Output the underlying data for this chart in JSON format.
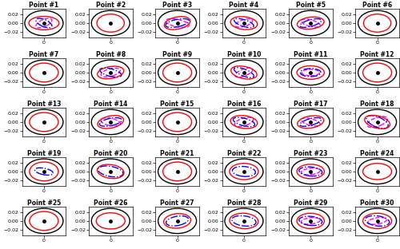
{
  "n_cols": 6,
  "n_rows": 5,
  "xlim": [
    -0.032,
    0.032
  ],
  "ylim": [
    -0.032,
    0.032
  ],
  "tick_yticks": [
    -0.02,
    0,
    0.02
  ],
  "tick_xticks": [
    0
  ],
  "schemes": {
    "s1": {
      "color": "black",
      "ls": "-",
      "lw": 1.0
    },
    "s2": {
      "color": "red",
      "ls": "-",
      "lw": 1.0
    },
    "s3": {
      "color": "blue",
      "ls": "-.",
      "lw": 1.0
    },
    "s4": {
      "color": "magenta",
      "ls": "--",
      "lw": 1.0
    }
  },
  "points": [
    {
      "id": 1,
      "s1": [
        0.056,
        0.056,
        0
      ],
      "s2": [
        0.044,
        0.03,
        0
      ],
      "s3": [
        0.028,
        0.014,
        -40
      ],
      "s4": [
        0.028,
        0.014,
        40
      ]
    },
    {
      "id": 2,
      "s1": [
        0.056,
        0.056,
        0
      ],
      "s2": [
        0.04,
        0.04,
        0
      ],
      "s3": null,
      "s4": null
    },
    {
      "id": 3,
      "s1": [
        0.056,
        0.056,
        0
      ],
      "s2": [
        0.04,
        0.026,
        25
      ],
      "s3": [
        0.036,
        0.016,
        20
      ],
      "s4": [
        0.036,
        0.016,
        -20
      ]
    },
    {
      "id": 4,
      "s1": [
        0.056,
        0.056,
        0
      ],
      "s2": [
        0.04,
        0.028,
        -15
      ],
      "s3": [
        0.032,
        0.014,
        -30
      ],
      "s4": [
        0.028,
        0.014,
        30
      ]
    },
    {
      "id": 5,
      "s1": [
        0.056,
        0.056,
        0
      ],
      "s2": [
        0.04,
        0.026,
        15
      ],
      "s3": [
        0.034,
        0.014,
        25
      ],
      "s4": [
        0.03,
        0.014,
        -25
      ]
    },
    {
      "id": 6,
      "s1": [
        0.056,
        0.056,
        0
      ],
      "s2": [
        0.04,
        0.04,
        0
      ],
      "s3": null,
      "s4": null
    },
    {
      "id": 7,
      "s1": [
        0.056,
        0.056,
        0
      ],
      "s2": [
        0.042,
        0.042,
        0
      ],
      "s3": null,
      "s4": null
    },
    {
      "id": 8,
      "s1": [
        0.056,
        0.056,
        0
      ],
      "s2": [
        0.04,
        0.026,
        20
      ],
      "s3": [
        0.034,
        0.016,
        -25
      ],
      "s4": [
        0.03,
        0.016,
        25
      ]
    },
    {
      "id": 9,
      "s1": [
        0.056,
        0.056,
        0
      ],
      "s2": [
        0.042,
        0.042,
        0
      ],
      "s3": null,
      "s4": null
    },
    {
      "id": 10,
      "s1": [
        0.056,
        0.056,
        0
      ],
      "s2": [
        0.04,
        0.026,
        -25
      ],
      "s3": [
        0.034,
        0.014,
        -35
      ],
      "s4": [
        0.03,
        0.014,
        35
      ]
    },
    {
      "id": 11,
      "s1": [
        0.056,
        0.056,
        0
      ],
      "s2": [
        0.04,
        0.03,
        0
      ],
      "s3": [
        0.03,
        0.018,
        0
      ],
      "s4": [
        0.026,
        0.014,
        0
      ]
    },
    {
      "id": 12,
      "s1": [
        0.056,
        0.056,
        0
      ],
      "s2": [
        0.042,
        0.042,
        0
      ],
      "s3": null,
      "s4": null
    },
    {
      "id": 13,
      "s1": [
        0.056,
        0.056,
        0
      ],
      "s2": [
        0.042,
        0.042,
        0
      ],
      "s3": null,
      "s4": null
    },
    {
      "id": 14,
      "s1": [
        0.056,
        0.056,
        0
      ],
      "s2": [
        0.04,
        0.026,
        25
      ],
      "s3": [
        0.034,
        0.016,
        20
      ],
      "s4": [
        0.03,
        0.016,
        -20
      ]
    },
    {
      "id": 15,
      "s1": [
        0.056,
        0.056,
        0
      ],
      "s2": [
        0.042,
        0.042,
        0
      ],
      "s3": null,
      "s4": null
    },
    {
      "id": 16,
      "s1": [
        0.056,
        0.056,
        0
      ],
      "s2": [
        0.04,
        0.028,
        -15
      ],
      "s3": [
        0.034,
        0.016,
        -25
      ],
      "s4": [
        0.03,
        0.016,
        30
      ]
    },
    {
      "id": 17,
      "s1": [
        0.056,
        0.056,
        0
      ],
      "s2": [
        0.04,
        0.026,
        20
      ],
      "s3": [
        0.034,
        0.014,
        25
      ],
      "s4": [
        0.03,
        0.014,
        -25
      ]
    },
    {
      "id": 18,
      "s1": [
        0.056,
        0.056,
        0
      ],
      "s2": [
        0.04,
        0.026,
        -30
      ],
      "s3": [
        0.038,
        0.02,
        -40
      ],
      "s4": [
        0.034,
        0.018,
        35
      ]
    },
    {
      "id": 19,
      "s1": [
        0.056,
        0.056,
        0
      ],
      "s2": [
        0.042,
        0.042,
        0
      ],
      "s3": [
        0.028,
        0.014,
        -20
      ],
      "s4": null
    },
    {
      "id": 20,
      "s1": [
        0.056,
        0.056,
        0
      ],
      "s2": [
        0.04,
        0.03,
        -20
      ],
      "s3": [
        0.038,
        0.022,
        -20
      ],
      "s4": null
    },
    {
      "id": 21,
      "s1": [
        0.056,
        0.056,
        0
      ],
      "s2": [
        0.042,
        0.042,
        0
      ],
      "s3": null,
      "s4": null
    },
    {
      "id": 22,
      "s1": [
        0.056,
        0.056,
        0
      ],
      "s2": [
        0.042,
        0.036,
        0
      ],
      "s3": [
        0.034,
        0.022,
        -10
      ],
      "s4": null
    },
    {
      "id": 23,
      "s1": [
        0.056,
        0.056,
        0
      ],
      "s2": [
        0.04,
        0.032,
        0
      ],
      "s3": [
        0.034,
        0.02,
        -10
      ],
      "s4": [
        0.028,
        0.014,
        10
      ]
    },
    {
      "id": 24,
      "s1": [
        0.056,
        0.056,
        0
      ],
      "s2": [
        0.042,
        0.036,
        0
      ],
      "s3": null,
      "s4": null
    },
    {
      "id": 25,
      "s1": [
        0.056,
        0.056,
        0
      ],
      "s2": [
        0.042,
        0.042,
        0
      ],
      "s3": null,
      "s4": null
    },
    {
      "id": 26,
      "s1": [
        0.056,
        0.056,
        0
      ],
      "s2": [
        0.042,
        0.036,
        0
      ],
      "s3": null,
      "s4": null
    },
    {
      "id": 27,
      "s1": [
        0.056,
        0.056,
        0
      ],
      "s2": [
        0.04,
        0.032,
        15
      ],
      "s3": [
        0.034,
        0.02,
        20
      ],
      "s4": null
    },
    {
      "id": 28,
      "s1": [
        0.056,
        0.056,
        0
      ],
      "s2": [
        0.042,
        0.034,
        -10
      ],
      "s3": [
        0.036,
        0.022,
        -15
      ],
      "s4": null
    },
    {
      "id": 29,
      "s1": [
        0.056,
        0.056,
        0
      ],
      "s2": [
        0.04,
        0.034,
        0
      ],
      "s3": [
        0.034,
        0.02,
        -10
      ],
      "s4": [
        0.028,
        0.014,
        10
      ]
    },
    {
      "id": 30,
      "s1": [
        0.056,
        0.056,
        0
      ],
      "s2": [
        0.042,
        0.034,
        0
      ],
      "s3": [
        0.036,
        0.022,
        -15
      ],
      "s4": [
        0.028,
        0.014,
        15
      ]
    }
  ]
}
